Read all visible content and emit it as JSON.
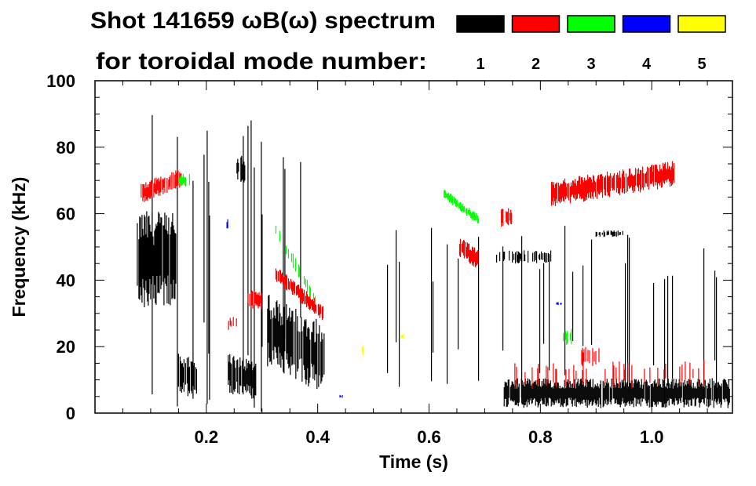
{
  "chart_data": {
    "type": "heatmap",
    "title": "Shot 141659 ωB(ω) spectrum",
    "subtitle": "for toroidal mode number:",
    "xlabel": "Time (s)",
    "ylabel": "Frequency (kHz)",
    "xlim": [
      0,
      1.145
    ],
    "ylim": [
      0,
      100
    ],
    "x_ticks": [
      "0.2",
      "0.4",
      "0.6",
      "0.8",
      "1.0"
    ],
    "x_tick_values": [
      0.2,
      0.4,
      0.6,
      0.8,
      1.0
    ],
    "y_ticks": [
      "0",
      "20",
      "40",
      "60",
      "80",
      "100"
    ],
    "y_tick_values": [
      0,
      20,
      40,
      60,
      80,
      100
    ],
    "legend": [
      {
        "mode": "1",
        "color": "#000000"
      },
      {
        "mode": "2",
        "color": "#ff0000"
      },
      {
        "mode": "3",
        "color": "#00ff00"
      },
      {
        "mode": "4",
        "color": "#0000ff"
      },
      {
        "mode": "5",
        "color": "#ffff00"
      }
    ],
    "features": [
      {
        "mode": 1,
        "t": [
          0.076,
          0.146
        ],
        "f_center": [
          46,
          46
        ],
        "f_width": 30,
        "density": 0.9
      },
      {
        "mode": 1,
        "t": [
          0.15,
          0.185
        ],
        "f_center": [
          12,
          10
        ],
        "f_width": 12,
        "density": 0.6
      },
      {
        "mode": 1,
        "t": [
          0.238,
          0.29
        ],
        "f_center": [
          12,
          10
        ],
        "f_width": 12,
        "density": 0.8
      },
      {
        "mode": 1,
        "t": [
          0.255,
          0.27
        ],
        "f_center": [
          74,
          73
        ],
        "f_width": 8,
        "density": 0.8
      },
      {
        "mode": 1,
        "t": [
          0.31,
          0.415
        ],
        "f_center": [
          25,
          16
        ],
        "f_width": 22,
        "density": 0.8
      },
      {
        "mode": 1,
        "t": [
          0.735,
          1.14
        ],
        "f_center": [
          6,
          6
        ],
        "f_width": 9,
        "density": 0.95
      },
      {
        "mode": 1,
        "t": [
          0.72,
          0.82
        ],
        "f_center": [
          47,
          47
        ],
        "f_width": 4,
        "density": 0.5
      },
      {
        "mode": 1,
        "t": [
          0.9,
          0.95
        ],
        "f_center": [
          54,
          54
        ],
        "f_width": 2,
        "density": 0.4
      },
      {
        "mode": 1,
        "t": [
          0.1,
          0.42
        ],
        "f_center": [
          45,
          45
        ],
        "f_width": 90,
        "density": 0.05
      },
      {
        "mode": 1,
        "t": [
          0.5,
          1.12
        ],
        "f_center": [
          30,
          30
        ],
        "f_width": 55,
        "density": 0.06
      },
      {
        "mode": 2,
        "t": [
          0.083,
          0.155
        ],
        "f_center": [
          66,
          71
        ],
        "f_width": 6,
        "density": 0.9
      },
      {
        "mode": 2,
        "t": [
          0.325,
          0.41
        ],
        "f_center": [
          42,
          30
        ],
        "f_width": 5,
        "density": 0.9
      },
      {
        "mode": 2,
        "t": [
          0.275,
          0.3
        ],
        "f_center": [
          34,
          34
        ],
        "f_width": 6,
        "density": 0.8
      },
      {
        "mode": 2,
        "t": [
          0.24,
          0.255
        ],
        "f_center": [
          27,
          27
        ],
        "f_width": 4,
        "density": 0.8
      },
      {
        "mode": 2,
        "t": [
          0.655,
          0.69
        ],
        "f_center": [
          50,
          46
        ],
        "f_width": 6,
        "density": 0.9
      },
      {
        "mode": 2,
        "t": [
          0.82,
          1.04
        ],
        "f_center": [
          66,
          72
        ],
        "f_width": 8,
        "density": 0.9
      },
      {
        "mode": 2,
        "t": [
          0.73,
          0.75
        ],
        "f_center": [
          59,
          59
        ],
        "f_width": 6,
        "density": 0.7
      },
      {
        "mode": 2,
        "t": [
          0.75,
          1.1
        ],
        "f_center": [
          11,
          12
        ],
        "f_width": 8,
        "density": 0.15
      },
      {
        "mode": 2,
        "t": [
          0.87,
          0.91
        ],
        "f_center": [
          17,
          17
        ],
        "f_width": 6,
        "density": 0.3
      },
      {
        "mode": 3,
        "t": [
          0.627,
          0.69
        ],
        "f_center": [
          66,
          58
        ],
        "f_width": 3,
        "density": 0.9
      },
      {
        "mode": 3,
        "t": [
          0.325,
          0.4
        ],
        "f_center": [
          55,
          33
        ],
        "f_width": 5,
        "density": 0.25
      },
      {
        "mode": 3,
        "t": [
          0.84,
          0.86
        ],
        "f_center": [
          23,
          23
        ],
        "f_width": 5,
        "density": 0.5
      },
      {
        "mode": 3,
        "t": [
          0.15,
          0.17
        ],
        "f_center": [
          70,
          70
        ],
        "f_width": 4,
        "density": 0.4
      },
      {
        "mode": 4,
        "t": [
          0.825,
          0.84
        ],
        "f_center": [
          33,
          33
        ],
        "f_width": 1,
        "density": 0.4
      },
      {
        "mode": 4,
        "t": [
          0.237,
          0.24
        ],
        "f_center": [
          57,
          57
        ],
        "f_width": 3,
        "density": 0.8
      },
      {
        "mode": 4,
        "t": [
          0.44,
          0.445
        ],
        "f_center": [
          5,
          5
        ],
        "f_width": 1,
        "density": 0.8
      },
      {
        "mode": 5,
        "t": [
          0.48,
          0.485
        ],
        "f_center": [
          19,
          19
        ],
        "f_width": 3,
        "density": 0.8
      },
      {
        "mode": 5,
        "t": [
          0.55,
          0.555
        ],
        "f_center": [
          23,
          23
        ],
        "f_width": 2,
        "density": 0.8
      }
    ]
  }
}
